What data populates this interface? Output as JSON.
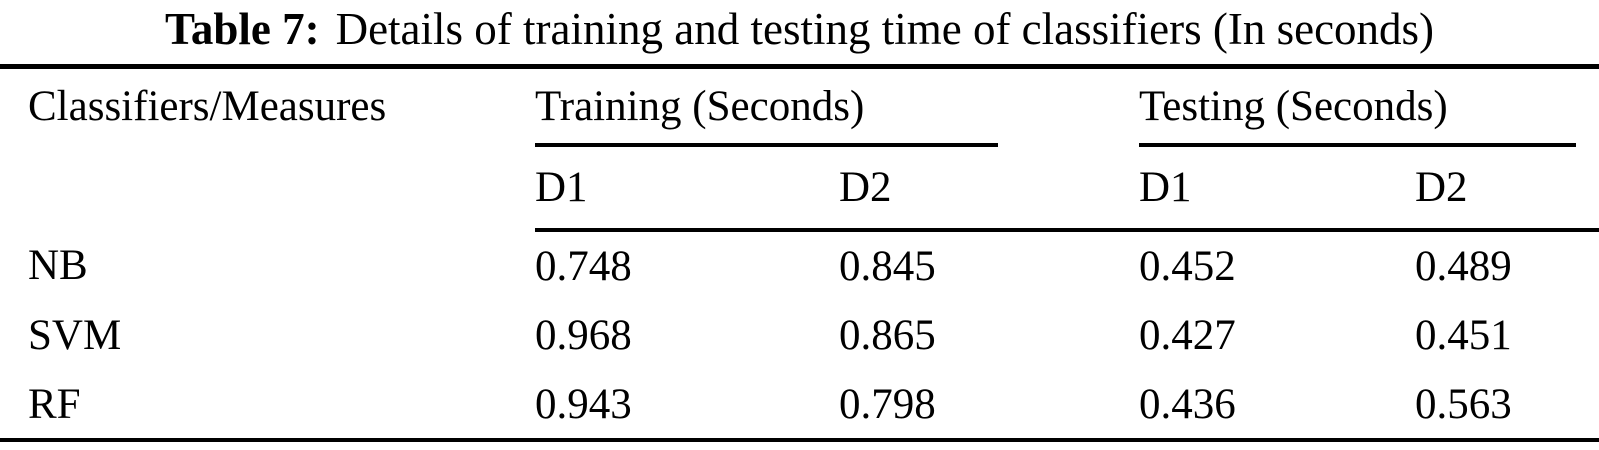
{
  "caption": {
    "prefix": "Table 7:",
    "text": "Details of training and testing time of classifiers (In seconds)"
  },
  "table": {
    "corner_header": "Classifiers/Measures",
    "groups": [
      {
        "label": "Training (Seconds)"
      },
      {
        "label": "Testing (Seconds)"
      }
    ],
    "sub_headers": [
      "D1",
      "D2",
      "D1",
      "D2"
    ],
    "rows": [
      {
        "label": "NB",
        "values": [
          "0.748",
          "0.845",
          "0.452",
          "0.489"
        ]
      },
      {
        "label": "SVM",
        "values": [
          "0.968",
          "0.865",
          "0.427",
          "0.451"
        ]
      },
      {
        "label": "RF",
        "values": [
          "0.943",
          "0.798",
          "0.436",
          "0.563"
        ]
      }
    ],
    "colors": {
      "text": "#000000",
      "background": "#ffffff",
      "rule": "#000000"
    }
  }
}
